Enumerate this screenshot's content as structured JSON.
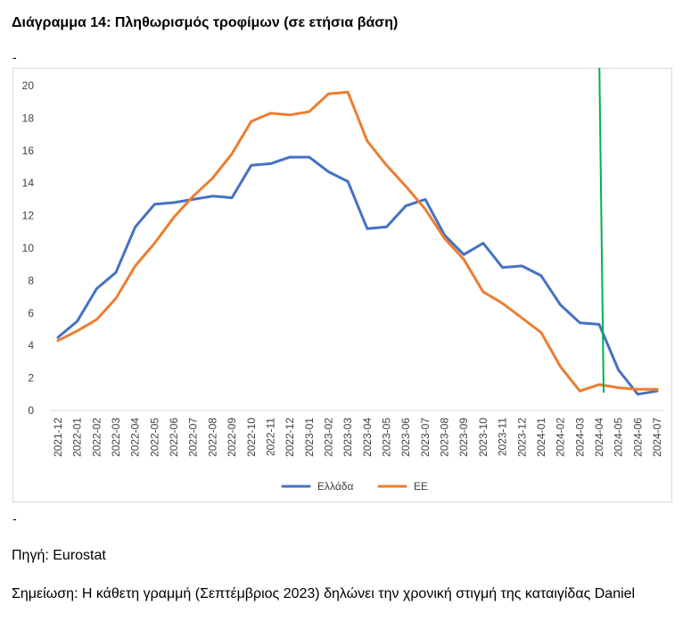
{
  "figure": {
    "title": "Διάγραμμα 14: Πληθωρισμός τροφίμων (σε ετήσια βάση)",
    "dash_top": "-",
    "dash_bottom": "-",
    "source": "Πηγή: Eurostat",
    "note": "Σημείωση: Η κάθετη γραμμή (Σεπτέμβριος 2023) δηλώνει την χρονική στιγμή της καταιγίδας Daniel"
  },
  "chart_data": {
    "type": "line",
    "title": "",
    "xlabel": "",
    "ylabel": "",
    "ylim": [
      0,
      20
    ],
    "yticks": [
      0,
      2,
      4,
      6,
      8,
      10,
      12,
      14,
      16,
      18,
      20
    ],
    "grid": false,
    "legend_position": "bottom",
    "categories": [
      "2021-12",
      "2022-01",
      "2022-02",
      "2022-03",
      "2022-04",
      "2022-05",
      "2022-06",
      "2022-07",
      "2022-08",
      "2022-09",
      "2022-10",
      "2022-11",
      "2022-12",
      "2023-01",
      "2023-02",
      "2023-03",
      "2023-04",
      "2023-05",
      "2023-06",
      "2023-07",
      "2023-08",
      "2023-09",
      "2023-10",
      "2023-11",
      "2023-12",
      "2024-01",
      "2024-02",
      "2024-03",
      "2024-04",
      "2024-05",
      "2024-06",
      "2024-07"
    ],
    "series": [
      {
        "name": "Ελλάδα",
        "color": "#4472c4",
        "values": [
          4.5,
          5.5,
          7.5,
          8.5,
          11.3,
          12.7,
          12.8,
          13.0,
          13.2,
          13.1,
          15.1,
          15.2,
          15.6,
          15.6,
          14.7,
          14.1,
          11.2,
          11.3,
          12.6,
          13.0,
          10.8,
          9.6,
          10.3,
          8.8,
          8.9,
          8.3,
          6.5,
          5.4,
          5.3,
          2.5,
          1.0,
          1.2
        ]
      },
      {
        "name": "ΕΕ",
        "color": "#ed7d31",
        "values": [
          4.3,
          4.9,
          5.6,
          6.9,
          8.9,
          10.3,
          11.9,
          13.2,
          14.3,
          15.8,
          17.8,
          18.3,
          18.2,
          18.4,
          19.5,
          19.6,
          16.6,
          15.1,
          13.8,
          12.4,
          10.6,
          9.3,
          7.3,
          6.6,
          5.7,
          4.8,
          2.7,
          1.2,
          1.6,
          1.4,
          1.3,
          1.3
        ]
      }
    ],
    "marker_line": {
      "color": "#00b050"
    }
  }
}
